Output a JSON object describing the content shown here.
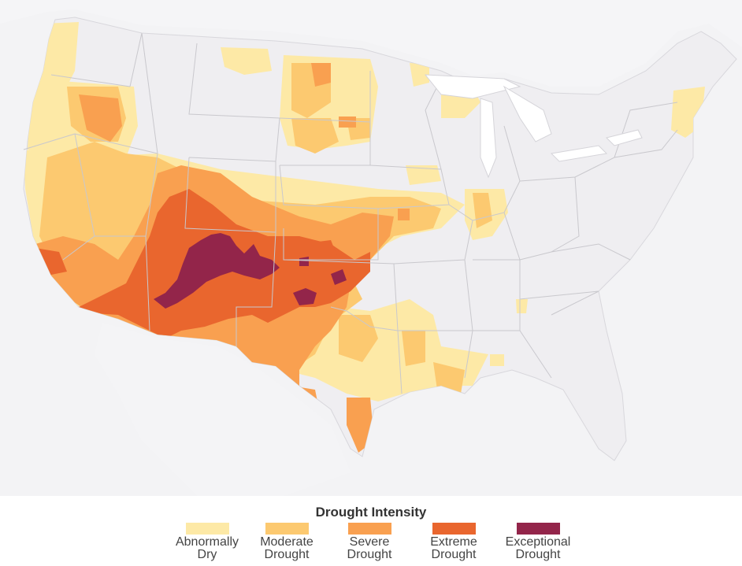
{
  "legend": {
    "title": "Drought Intensity",
    "categories": [
      {
        "line1": "Abnormally",
        "line2": "Dry",
        "color": "#fde9a6"
      },
      {
        "line1": "Moderate",
        "line2": "Drought",
        "color": "#fcc970"
      },
      {
        "line1": "Severe",
        "line2": "Drought",
        "color": "#f9a050"
      },
      {
        "line1": "Extreme",
        "line2": "Drought",
        "color": "#e9662e"
      },
      {
        "line1": "Exceptional",
        "line2": "Drought",
        "color": "#93254a"
      }
    ]
  },
  "colors": {
    "land": "#efeef1",
    "state_border": "#c8c7cc",
    "background": "#ffffff"
  }
}
